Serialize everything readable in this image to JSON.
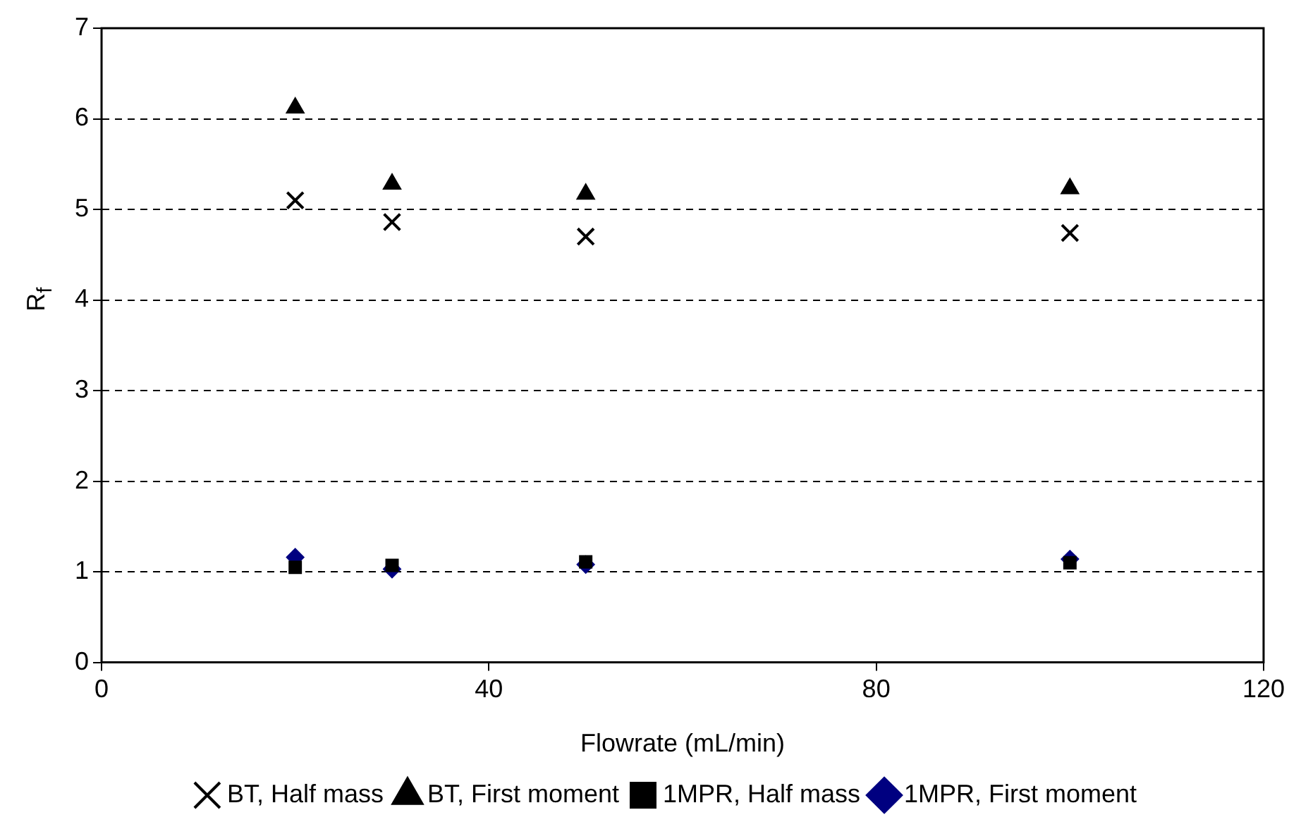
{
  "chart_data": {
    "type": "scatter",
    "xlabel": "Flowrate (mL/min)",
    "ylabel": "R$_{f}$",
    "xlim": [
      0,
      120
    ],
    "xticks": [
      0,
      40,
      80,
      120
    ],
    "ylim": [
      0,
      7
    ],
    "yticks": [
      0,
      1,
      2,
      3,
      4,
      5,
      6,
      7
    ],
    "grid": "y",
    "legend": "bottom",
    "x": [
      20,
      30,
      50,
      100
    ],
    "series": [
      {
        "name": "1MPR, First moment",
        "color": "#000080",
        "marker": "diamond",
        "values": [
          1.16,
          1.03,
          1.08,
          1.14
        ]
      },
      {
        "name": "1MPR, Half mass",
        "color": "#000000",
        "marker": "square",
        "values": [
          1.05,
          1.07,
          1.11,
          1.1
        ]
      },
      {
        "name": "BT, First moment",
        "color": "#000000",
        "marker": "triangle",
        "values": [
          6.12,
          5.28,
          5.17,
          5.23
        ]
      },
      {
        "name": "BT, Half mass",
        "color": "#000000",
        "marker": "cross",
        "values": [
          5.1,
          4.86,
          4.7,
          4.74
        ]
      }
    ]
  }
}
